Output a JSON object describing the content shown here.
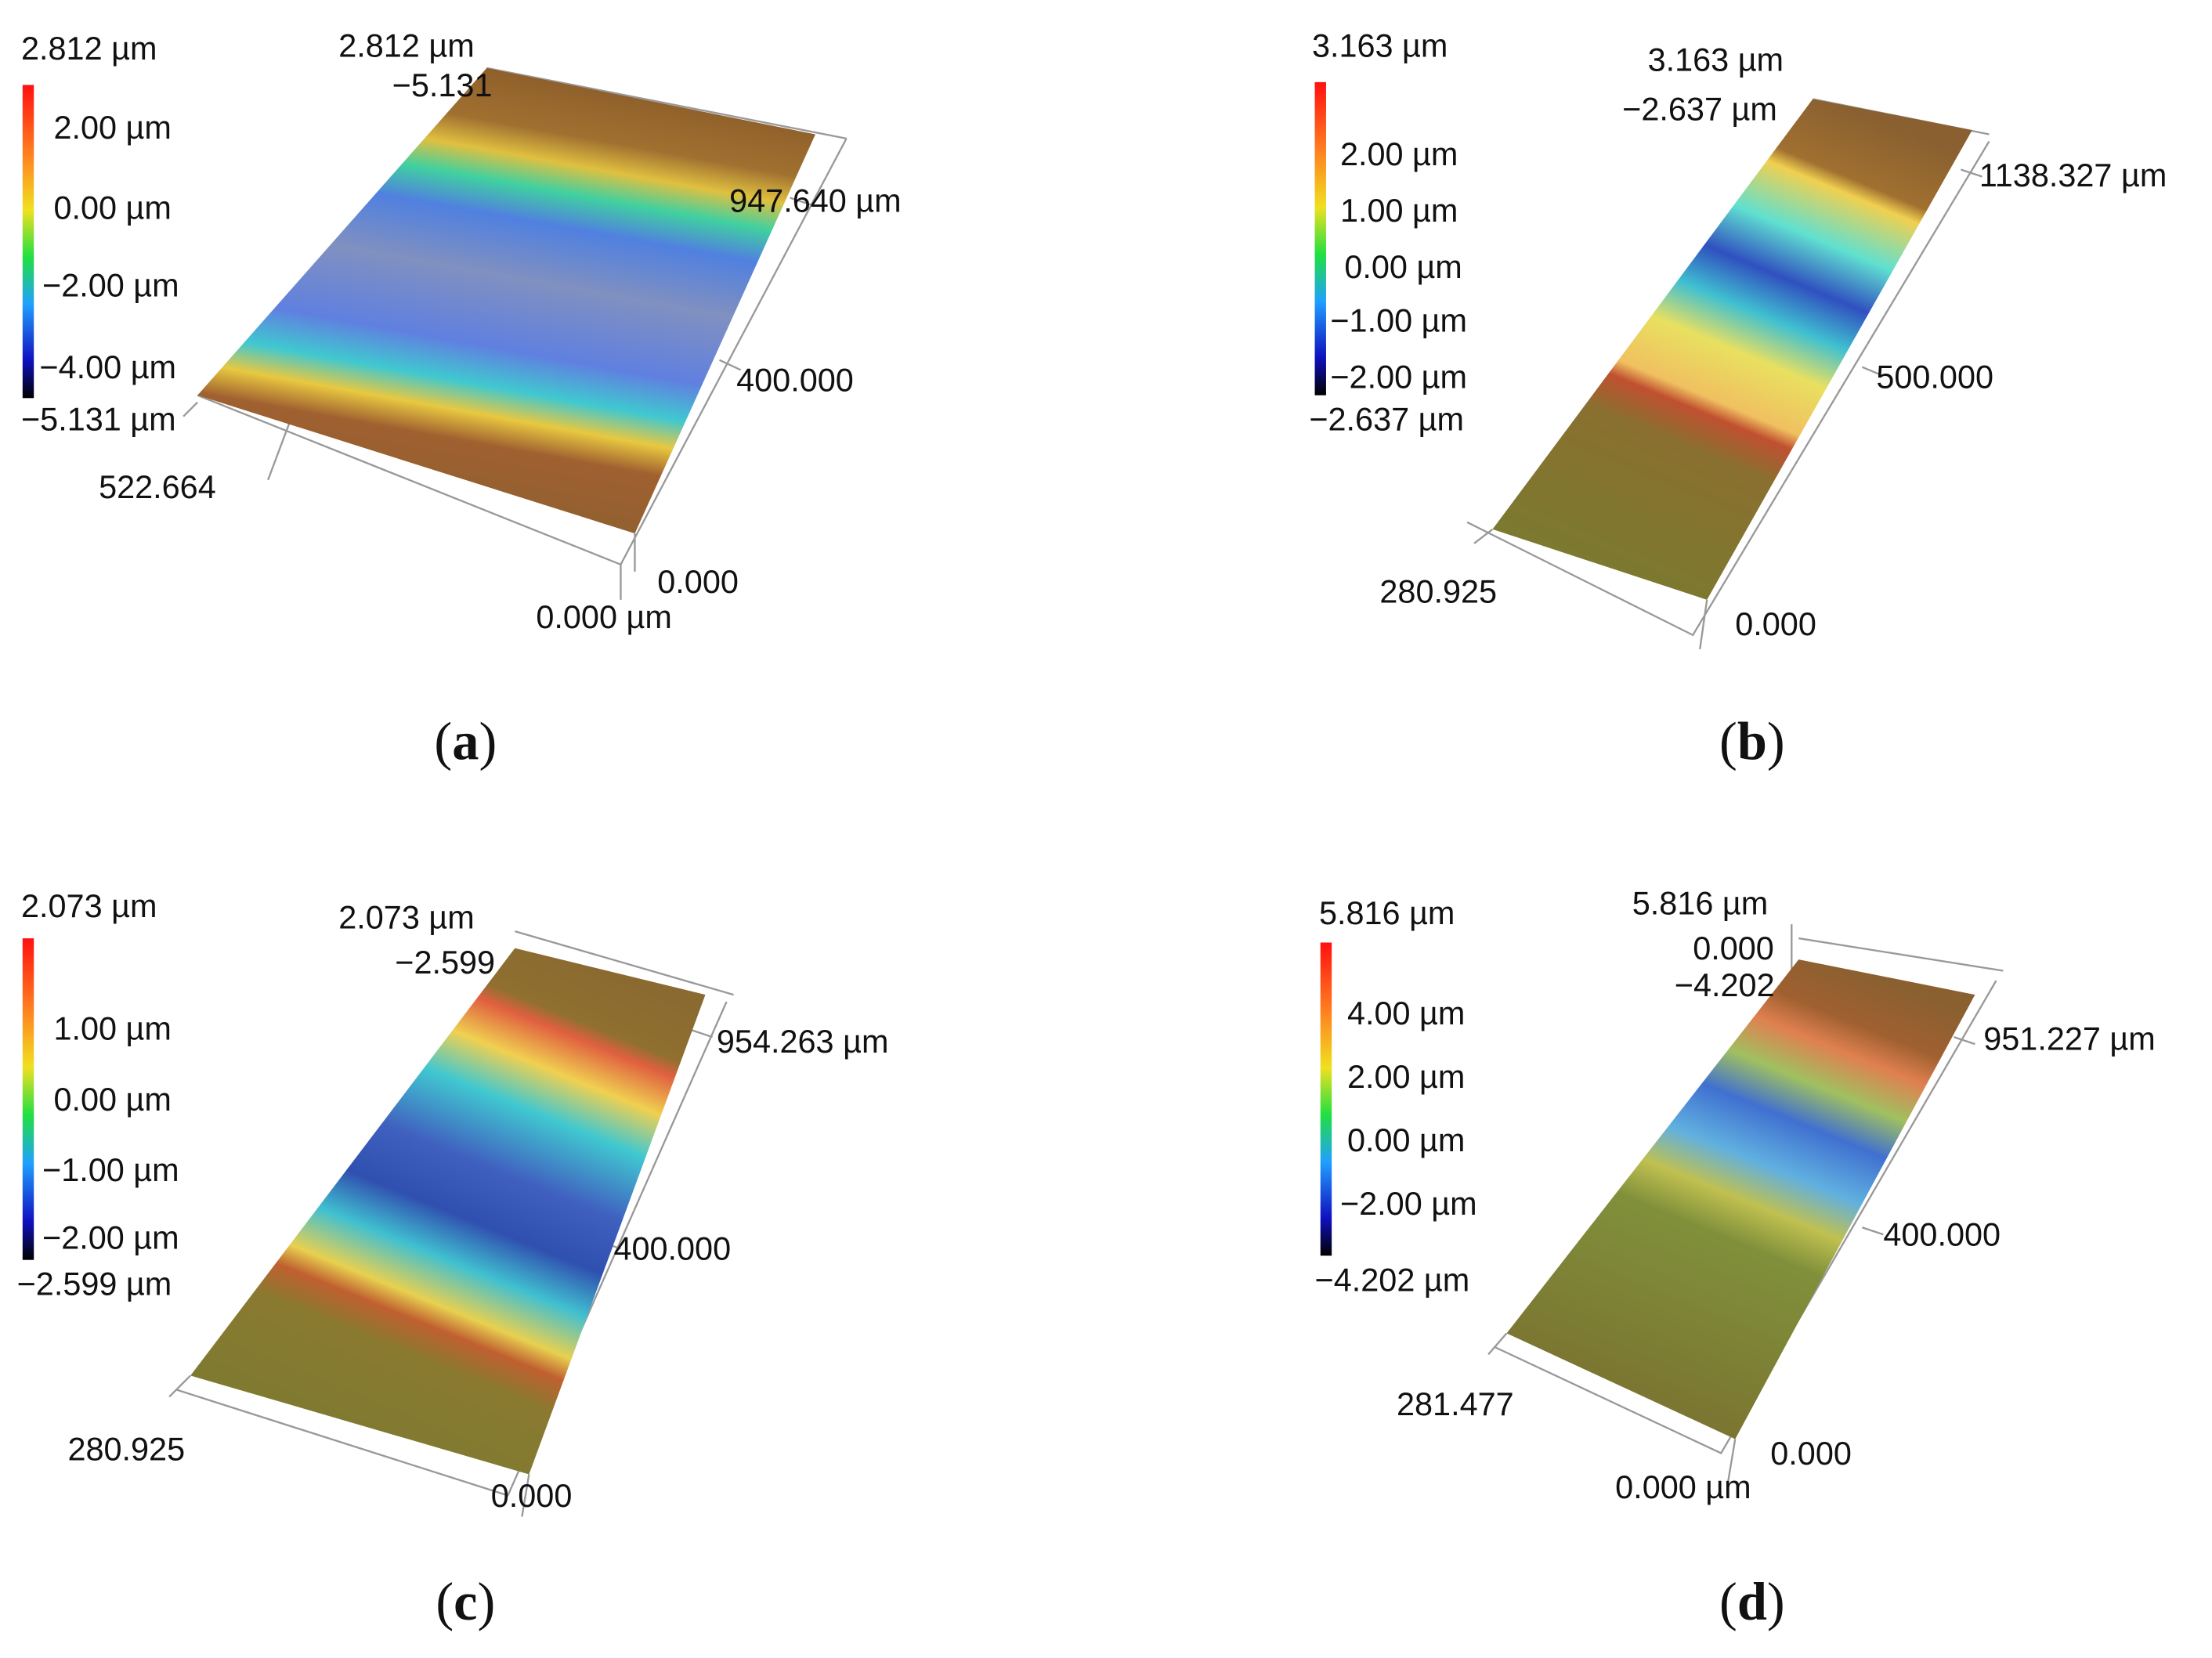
{
  "panels": [
    {
      "colorbar": {
        "max": "2.812 µm",
        "ticks": [
          "2.00 µm",
          "0.00 µm",
          "−2.00 µm",
          "−4.00 µm"
        ],
        "min": "−5.131 µm"
      },
      "axis_labels": [
        "2.812 µm",
        "−5.131",
        "947.640 µm",
        "400.000",
        "522.664",
        "0.000",
        "0.000 µm"
      ],
      "caption": [
        "(",
        "a",
        ")"
      ]
    },
    {
      "colorbar": {
        "max": "3.163 µm",
        "ticks": [
          "2.00 µm",
          "1.00 µm",
          "0.00 µm",
          "−1.00 µm",
          "−2.00 µm"
        ],
        "min": "−2.637 µm"
      },
      "axis_labels": [
        "3.163 µm",
        "−2.637 µm",
        "1138.327 µm",
        "500.000",
        "280.925",
        "0.000"
      ],
      "caption": [
        "(",
        "b",
        ")"
      ]
    },
    {
      "colorbar": {
        "max": "2.073 µm",
        "ticks": [
          "1.00 µm",
          "0.00 µm",
          "−1.00 µm",
          "−2.00 µm"
        ],
        "min": "−2.599 µm"
      },
      "axis_labels": [
        "2.073 µm",
        "−2.599",
        "954.263 µm",
        "400.000",
        "280.925",
        "0.000"
      ],
      "caption": [
        "(",
        "c",
        ")"
      ]
    },
    {
      "colorbar": {
        "max": "5.816 µm",
        "ticks": [
          "4.00 µm",
          "2.00 µm",
          "0.00 µm",
          "−2.00 µm"
        ],
        "min": "−4.202 µm"
      },
      "axis_labels": [
        "5.816 µm",
        "0.000",
        "−4.202",
        "951.227 µm",
        "400.000",
        "281.477",
        "0.000",
        "0.000 µm"
      ],
      "caption": [
        "(",
        "d",
        ")"
      ]
    }
  ]
}
